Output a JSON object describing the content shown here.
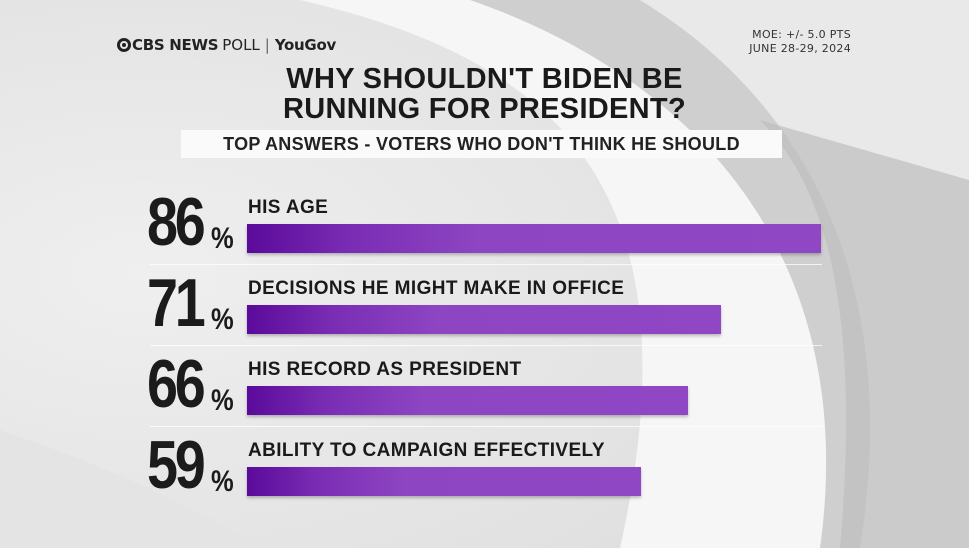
{
  "header": {
    "brand_main": "CBS NEWS",
    "brand_poll": "POLL",
    "brand_separator": "|",
    "brand_partner": "YouGov",
    "moe": "MOE: +/- 5.0 PTS",
    "date": "JUNE 28-29, 2024"
  },
  "colors": {
    "bar": "#8f47c4",
    "bar_dark": "#5b0a9a",
    "text": "#1a1a1a"
  },
  "chart_data": {
    "type": "bar",
    "orientation": "horizontal",
    "title_line1": "WHY SHOULDN'T BIDEN BE",
    "title_line2": "RUNNING FOR PRESIDENT?",
    "subtitle": "TOP ANSWERS - VOTERS WHO DON'T THINK HE SHOULD",
    "unit": "%",
    "xlim": [
      0,
      86
    ],
    "categories": [
      "HIS AGE",
      "DECISIONS HE MIGHT MAKE IN OFFICE",
      "HIS RECORD AS PRESIDENT",
      "ABILITY TO CAMPAIGN EFFECTIVELY"
    ],
    "values": [
      86,
      71,
      66,
      59
    ],
    "grid": false,
    "legend": "none"
  }
}
